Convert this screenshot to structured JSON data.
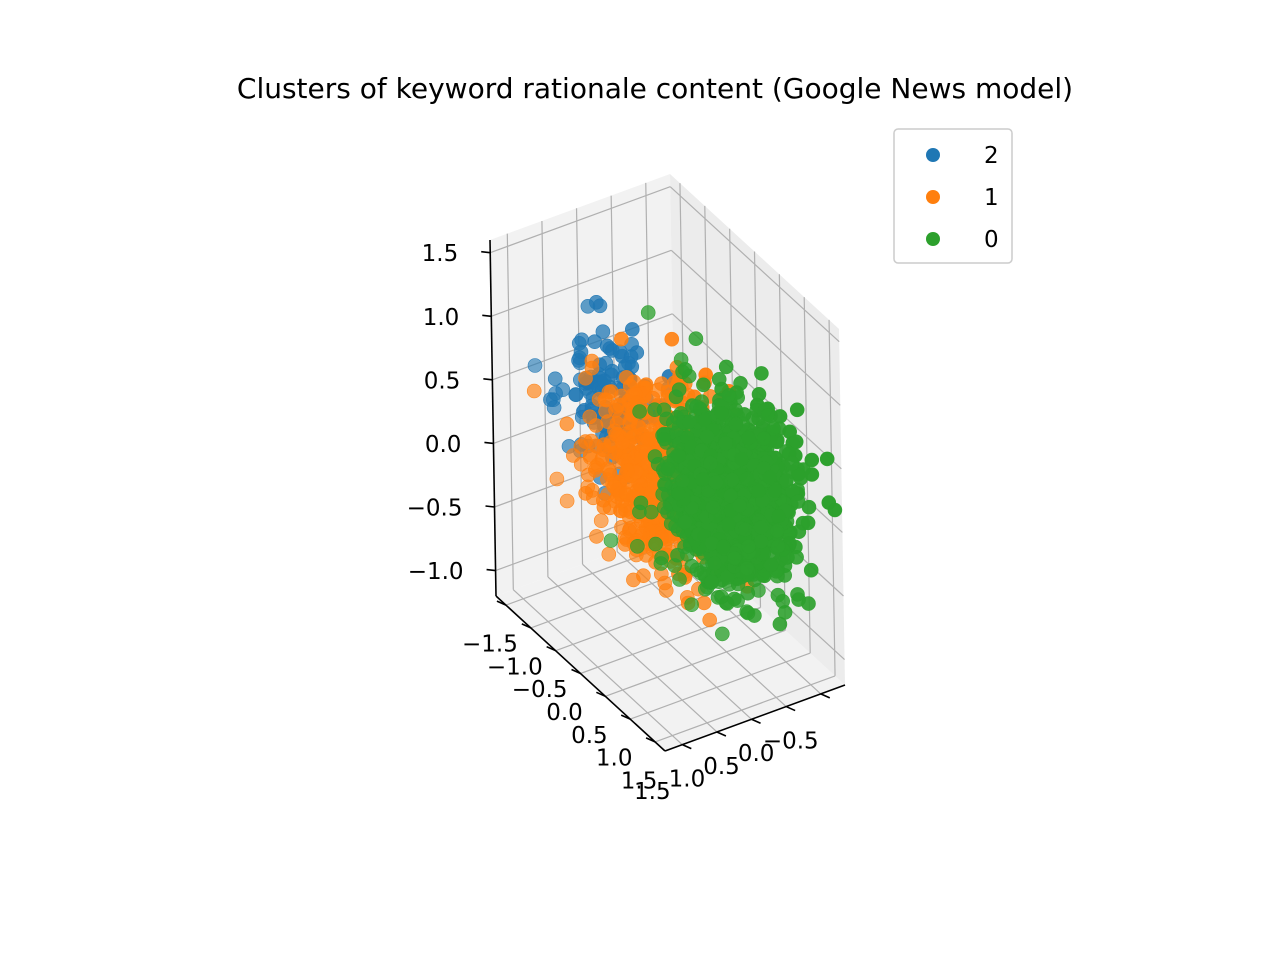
{
  "chart_data": {
    "type": "scatter",
    "projection": "3d",
    "title": "Clusters of keyword rationale content (Google News model)",
    "xlabel": "",
    "ylabel": "",
    "zlabel": "",
    "grid": true,
    "legend_position": "top-right",
    "axes": {
      "x": {
        "ticks": [
          "−1.5",
          "−1.0",
          "−0.5",
          "0.0",
          "0.5",
          "1.0",
          "1.5"
        ],
        "lim": [
          -1.7,
          1.7
        ]
      },
      "y": {
        "ticks": [
          "−0.5",
          "0.0",
          "0.5",
          "1.0",
          "1.5"
        ],
        "lim": [
          -0.85,
          1.75
        ]
      },
      "z": {
        "ticks": [
          "−1.0",
          "−0.5",
          "0.0",
          "0.5",
          "1.0",
          "1.5"
        ],
        "lim": [
          -1.2,
          1.6
        ]
      }
    },
    "series": [
      {
        "name": "2",
        "color": "#1f77b4",
        "center": [
          -0.9,
          0.6,
          0.35
        ],
        "spread": [
          0.35,
          0.3,
          0.28
        ],
        "n": 140
      },
      {
        "name": "1",
        "color": "#ff7f0e",
        "center": [
          -0.1,
          0.45,
          0.05
        ],
        "spread": [
          0.5,
          0.35,
          0.3
        ],
        "n": 700
      },
      {
        "name": "0",
        "color": "#2ca02c",
        "center": [
          0.55,
          -0.05,
          0.05
        ],
        "spread": [
          0.42,
          0.32,
          0.3
        ],
        "n": 1400
      }
    ]
  }
}
